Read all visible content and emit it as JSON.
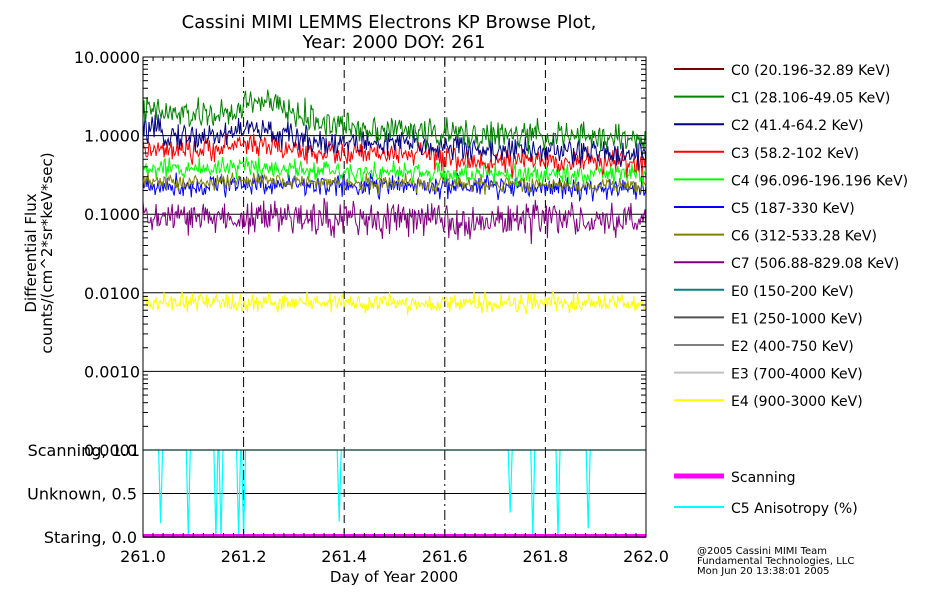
{
  "chart_data": {
    "type": "line",
    "title": "Cassini MIMI LEMMS Electrons KP Browse Plot,",
    "subtitle": "Year: 2000 DOY: 261",
    "xlabel": "Day of Year 2000",
    "xlim": [
      261.0,
      262.0
    ],
    "x_ticks": [
      "261.0",
      "261.2",
      "261.4",
      "261.6",
      "261.8",
      "262.0"
    ],
    "x_tick_values": [
      261.0,
      261.2,
      261.4,
      261.6,
      261.8,
      262.0
    ],
    "top_panel": {
      "ylabel_line1": "Differential Flux",
      "ylabel_line2": "counts/(cm^2*sr*keV*sec)",
      "yscale": "log",
      "ylim": [
        0.0001,
        10.0
      ],
      "y_ticks": [
        "10.0000",
        "1.0000",
        "0.1000",
        "0.0100",
        "0.0010",
        "0.0001"
      ],
      "y_tick_values": [
        10.0,
        1.0,
        0.1,
        0.01,
        0.001,
        0.0001
      ],
      "grid": "horizontal at each decade; dash-dot vertical at 261.2, 261.6; dashed vertical at 261.4, 261.8",
      "series": [
        {
          "name": "C0 (20.196-32.89 KeV)",
          "color": "#800000",
          "x": [],
          "values": []
        },
        {
          "name": "C1 (28.106-49.05 KeV)",
          "color": "#008000",
          "x": [
            261.0,
            261.05,
            261.1,
            261.15,
            261.18,
            261.2,
            261.23,
            261.27,
            261.3,
            261.35,
            261.4,
            261.5,
            261.6,
            261.7,
            261.8,
            261.9,
            262.0
          ],
          "values": [
            2.1,
            1.9,
            1.8,
            1.9,
            1.7,
            2.6,
            2.8,
            2.3,
            1.9,
            1.5,
            1.3,
            1.2,
            1.05,
            1.0,
            1.0,
            0.95,
            0.9
          ]
        },
        {
          "name": "C2 (41.4-64.2 KeV)",
          "color": "#000080",
          "x": [
            261.0,
            261.05,
            261.1,
            261.15,
            261.2,
            261.25,
            261.3,
            261.35,
            261.4,
            261.5,
            261.6,
            261.7,
            261.8,
            261.9,
            262.0
          ],
          "values": [
            1.2,
            1.05,
            0.95,
            1.0,
            1.25,
            1.1,
            0.95,
            0.85,
            0.8,
            0.8,
            0.72,
            0.65,
            0.65,
            0.6,
            0.6
          ]
        },
        {
          "name": "C3 (58.2-102 KeV)",
          "color": "#ff0000",
          "x": [
            261.0,
            261.1,
            261.2,
            261.25,
            261.3,
            261.4,
            261.5,
            261.55,
            261.6,
            261.7,
            261.8,
            261.9,
            262.0
          ],
          "values": [
            0.65,
            0.62,
            0.8,
            0.75,
            0.65,
            0.58,
            0.58,
            0.6,
            0.48,
            0.46,
            0.48,
            0.47,
            0.45
          ]
        },
        {
          "name": "C4 (96.096-196.196 KeV)",
          "color": "#00ff00",
          "x": [
            261.0,
            261.1,
            261.2,
            261.3,
            261.4,
            261.5,
            261.6,
            261.7,
            261.8,
            261.9,
            262.0
          ],
          "values": [
            0.37,
            0.38,
            0.42,
            0.38,
            0.36,
            0.34,
            0.33,
            0.32,
            0.32,
            0.33,
            0.32
          ]
        },
        {
          "name": "C5 (187-330 KeV)",
          "color": "#0000ff",
          "x": [
            261.0,
            261.1,
            261.2,
            261.3,
            261.4,
            261.5,
            261.6,
            261.7,
            261.8,
            261.9,
            262.0
          ],
          "values": [
            0.23,
            0.23,
            0.25,
            0.24,
            0.23,
            0.23,
            0.22,
            0.22,
            0.22,
            0.21,
            0.21
          ]
        },
        {
          "name": "C6 (312-533.28 KeV)",
          "color": "#808000",
          "x": [
            261.0,
            261.1,
            261.2,
            261.3,
            261.4,
            261.5,
            261.6,
            261.7,
            261.8,
            261.9,
            262.0
          ],
          "values": [
            0.26,
            0.25,
            0.27,
            0.26,
            0.25,
            0.25,
            0.24,
            0.24,
            0.24,
            0.23,
            0.23
          ]
        },
        {
          "name": "C7 (506.88-829.08 KeV)",
          "color": "#800080",
          "x": [
            261.0,
            261.2,
            261.4,
            261.6,
            261.8,
            262.0
          ],
          "values": [
            0.09,
            0.09,
            0.09,
            0.085,
            0.085,
            0.08
          ]
        },
        {
          "name": "E0 (150-200 KeV)",
          "color": "#008080",
          "x": [],
          "values": []
        },
        {
          "name": "E1 (250-1000 KeV)",
          "color": "#505050",
          "x": [],
          "values": []
        },
        {
          "name": "E2 (400-750 KeV)",
          "color": "#808080",
          "x": [],
          "values": []
        },
        {
          "name": "E3 (700-4000 KeV)",
          "color": "#c0c0c0",
          "x": [],
          "values": []
        },
        {
          "name": "E4 (900-3000 KeV)",
          "color": "#ffff00",
          "x": [
            261.0,
            261.5,
            262.0
          ],
          "values": [
            0.0075,
            0.0074,
            0.0074
          ]
        }
      ]
    },
    "bottom_panel": {
      "y_ticks": [
        "Scanning, 1.0",
        "Unknown, 0.5",
        "Staring, 0.0"
      ],
      "y_tick_values": [
        1.0,
        0.5,
        0.0
      ],
      "ylim": [
        0.0,
        1.0
      ],
      "series": [
        {
          "name": "Scanning",
          "color": "#ff00ff",
          "x": [
            261.0,
            262.0
          ],
          "values": [
            0.0,
            0.0
          ]
        },
        {
          "name": "C5 Anisotropy (%)",
          "color": "#00ffff",
          "baseline": 1.0,
          "dips_x": [
            261.035,
            261.09,
            261.145,
            261.155,
            261.19,
            261.2,
            261.39,
            261.73,
            261.775,
            261.825,
            261.885
          ],
          "dips_min": [
            0.16,
            0.0,
            0.0,
            0.0,
            0.0,
            0.0,
            0.18,
            0.28,
            0.0,
            0.0,
            0.1
          ]
        }
      ]
    },
    "legend_placement": "right"
  },
  "credits": {
    "line1": "@2005 Cassini MIMI Team",
    "line2": "Fundamental Technologies, LLC",
    "line3": "Mon Jun 20 13:38:01 2005"
  }
}
